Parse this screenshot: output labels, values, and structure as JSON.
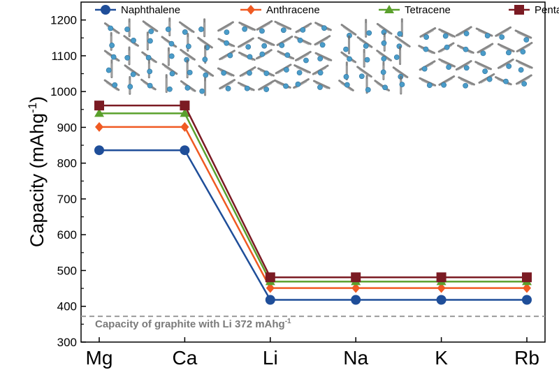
{
  "chart_data": {
    "type": "line",
    "title": "",
    "ylabel_main": "Capacity (mAhg",
    "ylabel_sup": "-1",
    "ylabel_tail": ")",
    "xlabel": "",
    "categories": [
      "Mg",
      "Ca",
      "Li",
      "Na",
      "K",
      "Rb"
    ],
    "ylim": [
      300,
      1250
    ],
    "yticks": [
      300,
      400,
      500,
      600,
      700,
      800,
      900,
      1000,
      1100,
      1200
    ],
    "grid": false,
    "legend_position": "top",
    "series": [
      {
        "name": "Naphthalene",
        "color": "#1f4e99",
        "marker": "circle",
        "values": [
          836,
          836,
          418,
          418,
          418,
          418
        ]
      },
      {
        "name": "Anthracene",
        "color": "#f05a22",
        "marker": "diamond",
        "values": [
          901,
          901,
          451,
          451,
          451,
          451
        ]
      },
      {
        "name": "Tetracene",
        "color": "#5aa02c",
        "marker": "triangle",
        "values": [
          939,
          939,
          469,
          469,
          469,
          469
        ]
      },
      {
        "name": "Pentacene",
        "color": "#7b1b23",
        "marker": "square",
        "values": [
          961,
          961,
          481,
          481,
          481,
          481
        ]
      }
    ],
    "reference_line": {
      "value": 372,
      "color": "#9a9a9a",
      "label_main": "Capacity of graphite with Li 372 mAhg",
      "label_sup": "-1"
    },
    "insets": [
      {
        "name": "naphthalene-crystal-structure-inset",
        "atoms": "#4a9cc9"
      },
      {
        "name": "anthracene-crystal-structure-inset",
        "atoms": "#4a9cc9"
      },
      {
        "name": "tetracene-crystal-structure-inset",
        "atoms": "#4a9cc9"
      },
      {
        "name": "pentacene-crystal-structure-inset",
        "atoms": "#4a9cc9"
      }
    ]
  }
}
